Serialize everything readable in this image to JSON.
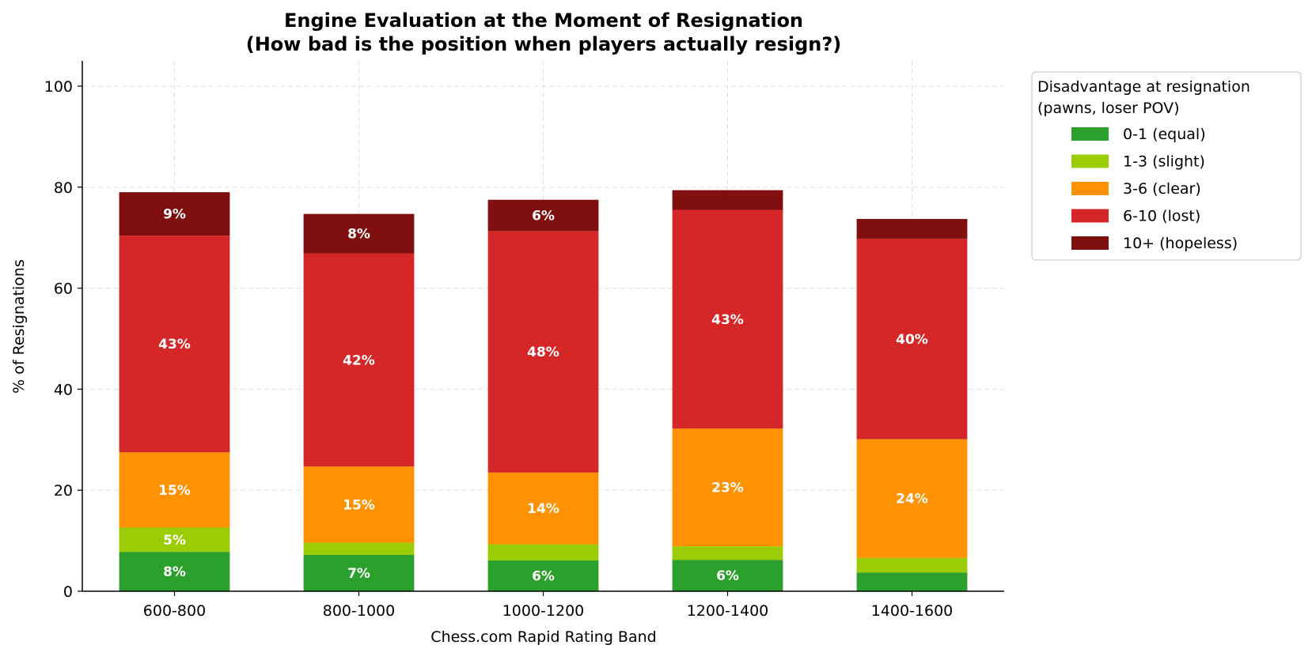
{
  "chart_data": {
    "type": "bar",
    "stacked": true,
    "title": "Engine Evaluation at the Moment of Resignation",
    "subtitle": "(How bad is the position when players actually resign?)",
    "xlabel": "Chess.com Rapid Rating Band",
    "ylabel": "% of Resignations",
    "ylim": [
      0,
      105
    ],
    "yticks": [
      0,
      20,
      40,
      60,
      80,
      100
    ],
    "grid": true,
    "legend_title": [
      "Disadvantage at resignation",
      "(pawns, loser POV)"
    ],
    "legend_position": "outside-right",
    "categories": [
      "600-800",
      "800-1000",
      "1000-1200",
      "1200-1400",
      "1400-1600"
    ],
    "series": [
      {
        "name": "0-1 (equal)",
        "color": "#2ca02c",
        "values": [
          7.8,
          7.2,
          6.1,
          6.2,
          3.7
        ],
        "labels": [
          "8%",
          "7%",
          "6%",
          "6%",
          ""
        ]
      },
      {
        "name": "1-3 (slight)",
        "color": "#9acd06",
        "values": [
          4.8,
          2.4,
          3.2,
          2.7,
          2.9
        ],
        "labels": [
          "5%",
          "",
          "",
          "",
          ""
        ]
      },
      {
        "name": "3-6 (clear)",
        "color": "#ff9203",
        "values": [
          14.9,
          15.1,
          14.2,
          23.3,
          23.5
        ],
        "labels": [
          "15%",
          "15%",
          "14%",
          "23%",
          "24%"
        ]
      },
      {
        "name": "6-10 (lost)",
        "color": "#d62728",
        "values": [
          42.9,
          42.2,
          47.8,
          43.3,
          39.7
        ],
        "labels": [
          "43%",
          "42%",
          "48%",
          "43%",
          "40%"
        ]
      },
      {
        "name": "10+ (hopeless)",
        "color": "#800f0f",
        "values": [
          8.6,
          7.8,
          6.2,
          3.9,
          3.9
        ],
        "labels": [
          "9%",
          "8%",
          "6%",
          "",
          ""
        ]
      }
    ]
  }
}
